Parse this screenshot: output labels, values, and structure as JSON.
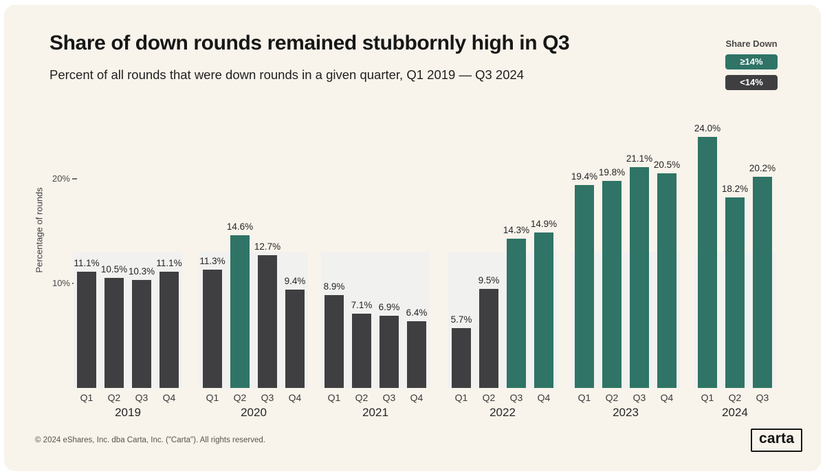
{
  "chart_data": {
    "type": "bar",
    "title": "Share of down rounds remained stubbornly high in Q3",
    "subtitle": "Percent of all rounds that were down rounds in a given quarter, Q1 2019 — Q3 2024",
    "ylabel": "Percentage of rounds",
    "ylim": [
      0,
      26
    ],
    "grid": false,
    "yticks": [
      {
        "value": 20,
        "label": "20%"
      },
      {
        "value": 10,
        "label": "10%"
      }
    ],
    "legend": {
      "title": "Share Down",
      "position": "top-right",
      "entries": [
        {
          "label": "≥14%",
          "color": "#2f7466"
        },
        {
          "label": "<14%",
          "color": "#3f3f41"
        }
      ]
    },
    "threshold_percent": 14,
    "colors": {
      "above_threshold": "#2f7466",
      "below_threshold": "#3f3f41",
      "group_panel": "#f1f1f0"
    },
    "groups": [
      {
        "year": "2019",
        "quarters": [
          "Q1",
          "Q2",
          "Q3",
          "Q4"
        ],
        "values": [
          11.1,
          10.5,
          10.3,
          11.1
        ],
        "labels": [
          "11.1%",
          "10.5%",
          "10.3%",
          "11.1%"
        ]
      },
      {
        "year": "2020",
        "quarters": [
          "Q1",
          "Q2",
          "Q3",
          "Q4"
        ],
        "values": [
          11.3,
          14.6,
          12.7,
          9.4
        ],
        "labels": [
          "11.3%",
          "14.6%",
          "12.7%",
          "9.4%"
        ]
      },
      {
        "year": "2021",
        "quarters": [
          "Q1",
          "Q2",
          "Q3",
          "Q4"
        ],
        "values": [
          8.9,
          7.1,
          6.9,
          6.4
        ],
        "labels": [
          "8.9%",
          "7.1%",
          "6.9%",
          "6.4%"
        ]
      },
      {
        "year": "2022",
        "quarters": [
          "Q1",
          "Q2",
          "Q3",
          "Q4"
        ],
        "values": [
          5.7,
          9.5,
          14.3,
          14.9
        ],
        "labels": [
          "5.7%",
          "9.5%",
          "14.3%",
          "14.9%"
        ]
      },
      {
        "year": "2023",
        "quarters": [
          "Q1",
          "Q2",
          "Q3",
          "Q4"
        ],
        "values": [
          19.4,
          19.8,
          21.1,
          20.5
        ],
        "labels": [
          "19.4%",
          "19.8%",
          "21.1%",
          "20.5%"
        ]
      },
      {
        "year": "2024",
        "quarters": [
          "Q1",
          "Q2",
          "Q3"
        ],
        "values": [
          24.0,
          18.2,
          20.2
        ],
        "labels": [
          "24.0%",
          "18.2%",
          "20.2%"
        ]
      }
    ]
  },
  "footer": {
    "copyright": "© 2024 eShares, Inc. dba Carta, Inc. (\"Carta\"). All rights reserved.",
    "logo_text": "carta"
  }
}
